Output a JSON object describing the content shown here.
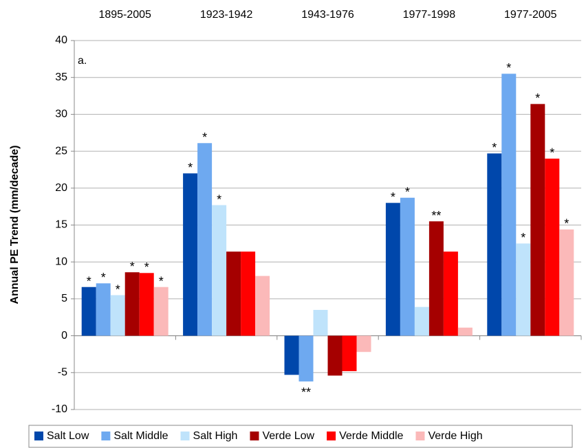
{
  "chart_data": {
    "type": "bar",
    "ylabel": "Annual PE Trend (mm/decade)",
    "annotation": "a.",
    "categories": [
      "1895-2005",
      "1923-1942",
      "1943-1976",
      "1977-1998",
      "1977-2005"
    ],
    "series": [
      {
        "name": "Salt Low",
        "color": "#0047ab",
        "values": [
          6.6,
          22.0,
          -5.3,
          18.0,
          24.7
        ],
        "significance": [
          "*",
          "*",
          null,
          "*",
          "*"
        ]
      },
      {
        "name": "Salt Middle",
        "color": "#6ea9f0",
        "values": [
          7.1,
          26.1,
          -6.2,
          18.7,
          35.5
        ],
        "significance": [
          "*",
          "*",
          "**",
          "*",
          "*"
        ]
      },
      {
        "name": "Salt High",
        "color": "#bfe3fb",
        "values": [
          5.5,
          17.7,
          3.5,
          3.9,
          12.5
        ],
        "significance": [
          "*",
          "*",
          null,
          null,
          "*"
        ]
      },
      {
        "name": "Verde Low",
        "color": "#a50000",
        "values": [
          8.6,
          11.4,
          -5.4,
          15.5,
          31.4
        ],
        "significance": [
          "*",
          null,
          null,
          "**",
          "*"
        ]
      },
      {
        "name": "Verde Middle",
        "color": "#ff0000",
        "values": [
          8.5,
          11.4,
          -4.8,
          11.4,
          24.0
        ],
        "significance": [
          "*",
          null,
          null,
          null,
          "*"
        ]
      },
      {
        "name": "Verde High",
        "color": "#fbb9b9",
        "values": [
          6.6,
          8.1,
          -2.2,
          1.1,
          14.4
        ],
        "significance": [
          "*",
          null,
          null,
          null,
          "*"
        ]
      }
    ],
    "ylim": [
      -10,
      40
    ],
    "yticks": [
      -10,
      -5,
      0,
      5,
      10,
      15,
      20,
      25,
      30,
      35,
      40
    ],
    "grid": true,
    "legend": "bottom"
  }
}
